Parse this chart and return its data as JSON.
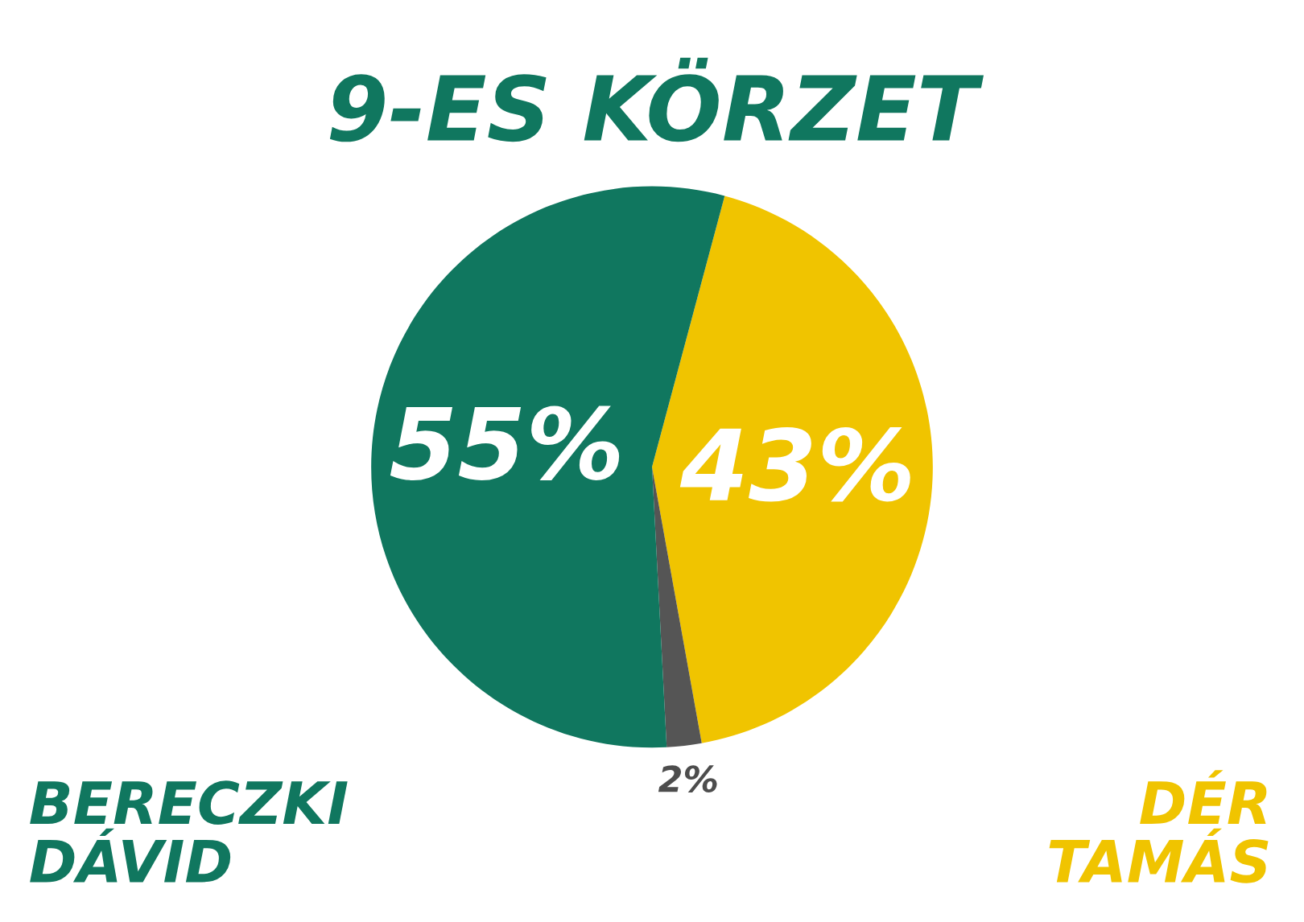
{
  "chart_data": {
    "type": "pie",
    "title": "9-ES KÖRZET",
    "categories": [
      "DÉR\nTAMÁS",
      null,
      "BERECZKI\nDÁVID"
    ],
    "values": [
      43,
      2,
      55
    ],
    "colors": [
      "#f0c400",
      "#555555",
      "#10775f"
    ],
    "value_labels": [
      "43%",
      "2%",
      "55%"
    ],
    "legend": false
  }
}
